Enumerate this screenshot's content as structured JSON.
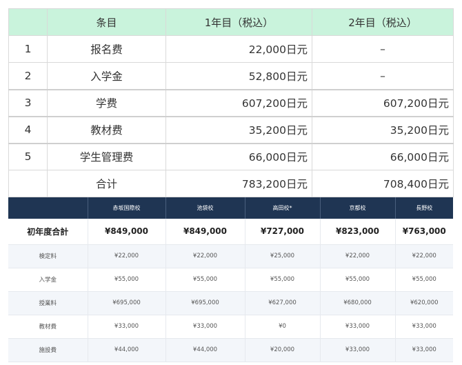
{
  "fee_table": {
    "headers": {
      "blank": "",
      "item": "条目",
      "year1": "1年目（税込）",
      "year2": "2年目（税込）"
    },
    "rows": [
      {
        "no": "1",
        "item": "报名费",
        "year1": "22,000日元",
        "year2": "–"
      },
      {
        "no": "2",
        "item": "入学金",
        "year1": "52,800日元",
        "year2": "–"
      },
      {
        "no": "3",
        "item": "学费",
        "year1": "607,200日元",
        "year2": "607,200日元"
      },
      {
        "no": "4",
        "item": "教材费",
        "year1": "35,200日元",
        "year2": "35,200日元"
      },
      {
        "no": "5",
        "item": "学生管理费",
        "year1": "66,000日元",
        "year2": "66,000日元"
      },
      {
        "no": "",
        "item": "合计",
        "year1": "783,200日元",
        "year2": "708,400日元"
      }
    ]
  },
  "comparison_table": {
    "headers": [
      "",
      "赤坂国際校",
      "池袋校",
      "高田校*",
      "京都校",
      "長野校"
    ],
    "total_row": {
      "label": "初年度合計",
      "values": [
        "¥849,000",
        "¥849,000",
        "¥727,000",
        "¥823,000",
        "¥763,000"
      ]
    },
    "rows": [
      {
        "label": "検定料",
        "values": [
          "¥22,000",
          "¥22,000",
          "¥25,000",
          "¥22,000",
          "¥22,000"
        ]
      },
      {
        "label": "入学金",
        "values": [
          "¥55,000",
          "¥55,000",
          "¥55,000",
          "¥55,000",
          "¥55,000"
        ]
      },
      {
        "label": "授業料",
        "values": [
          "¥695,000",
          "¥695,000",
          "¥627,000",
          "¥680,000",
          "¥620,000"
        ]
      },
      {
        "label": "教材費",
        "values": [
          "¥33,000",
          "¥33,000",
          "¥0",
          "¥33,000",
          "¥33,000"
        ]
      },
      {
        "label": "施設費",
        "values": [
          "¥44,000",
          "¥44,000",
          "¥20,000",
          "¥33,000",
          "¥33,000"
        ]
      }
    ]
  },
  "colors": {
    "header_green": "#c9f3dc",
    "header_navy": "#1f3553",
    "row_alt": "#f3f6fa"
  }
}
